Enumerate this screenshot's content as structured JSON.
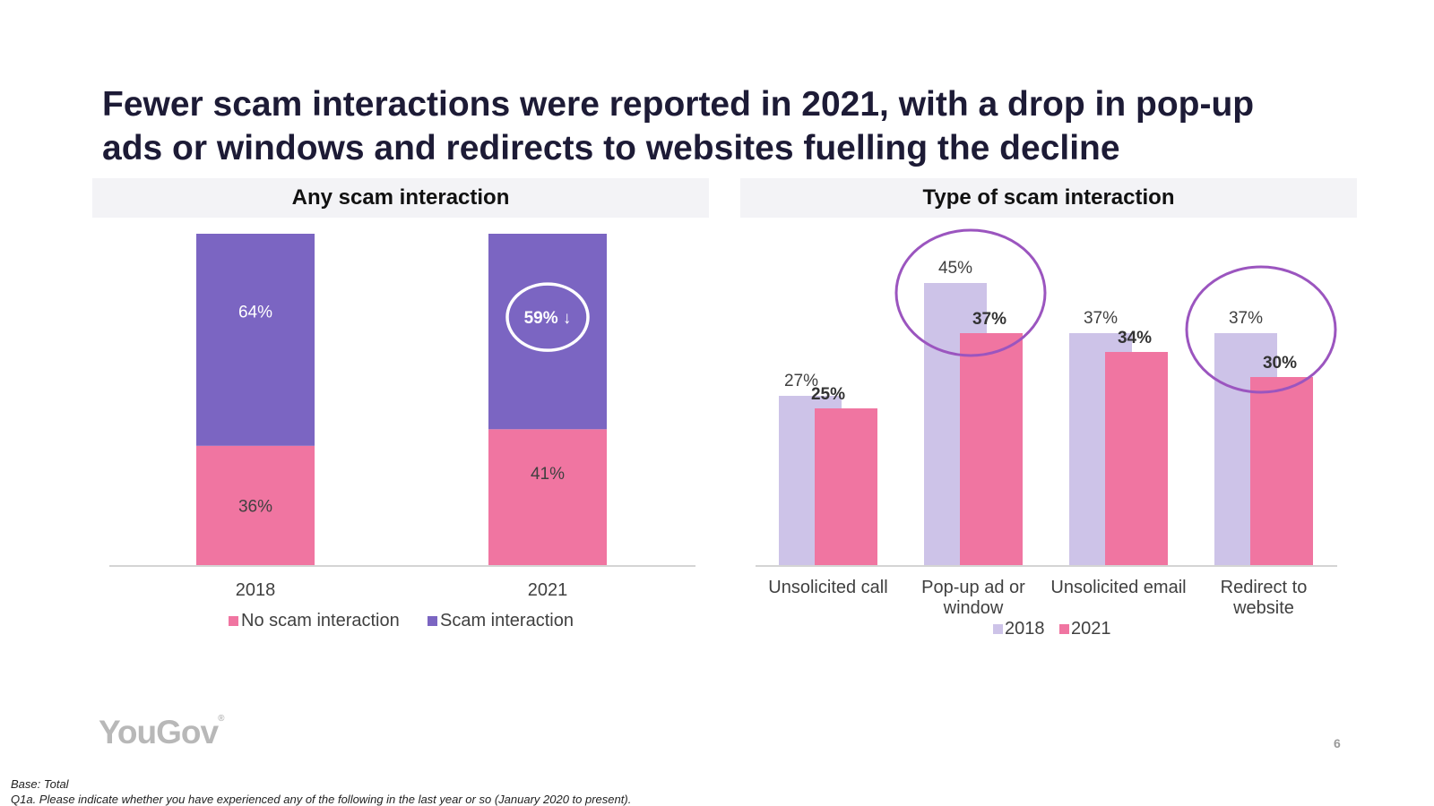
{
  "slide": {
    "title_line1": "Fewer scam interactions were reported in 2021, with a drop in pop-up",
    "title_line2": "ads or windows and redirects to websites fuelling the decline",
    "left_panel_title": "Any scam interaction",
    "right_panel_title": "Type of scam interaction",
    "logo": "YouGov",
    "logo_mark": "®",
    "page_number": "6",
    "base_note": "Base: Total",
    "question_note": "Q1a. Please indicate whether you have experienced any of the following in the last year or so (January 2020 to present)."
  },
  "chart_data": [
    {
      "type": "bar",
      "stacked": true,
      "title": "Any scam interaction",
      "categories": [
        "2018",
        "2021"
      ],
      "series": [
        {
          "name": "No scam interaction",
          "values": [
            36,
            41
          ],
          "labels": [
            "36%",
            "41%"
          ],
          "color": "#f075a1"
        },
        {
          "name": "Scam interaction",
          "values": [
            64,
            59
          ],
          "labels": [
            "64%",
            "59%"
          ],
          "color": "#7b65c2"
        }
      ],
      "annotations": [
        {
          "category": "2021",
          "series": "Scam interaction",
          "text": "↓",
          "circled": true
        }
      ],
      "ylim": [
        0,
        100
      ],
      "legend": "bottom"
    },
    {
      "type": "bar",
      "title": "Type of scam interaction",
      "categories": [
        "Unsolicited call",
        "Pop-up ad or window",
        "Unsolicited email",
        "Redirect to website"
      ],
      "category_lines": [
        [
          "Unsolicited call"
        ],
        [
          "Pop-up ad or",
          "window"
        ],
        [
          "Unsolicited email"
        ],
        [
          "Redirect to",
          "website"
        ]
      ],
      "series": [
        {
          "name": "2018",
          "values": [
            27,
            45,
            37,
            37
          ],
          "labels": [
            "27%",
            "45%",
            "37%",
            "37%"
          ],
          "color": "#cdc3e8"
        },
        {
          "name": "2021",
          "values": [
            25,
            37,
            34,
            30
          ],
          "labels": [
            "25%",
            "37%",
            "34%",
            "30%"
          ],
          "color": "#f075a1"
        }
      ],
      "highlighted_categories": [
        "Pop-up ad or window",
        "Redirect to website"
      ],
      "ylim": [
        0,
        50
      ],
      "legend": "bottom"
    }
  ]
}
